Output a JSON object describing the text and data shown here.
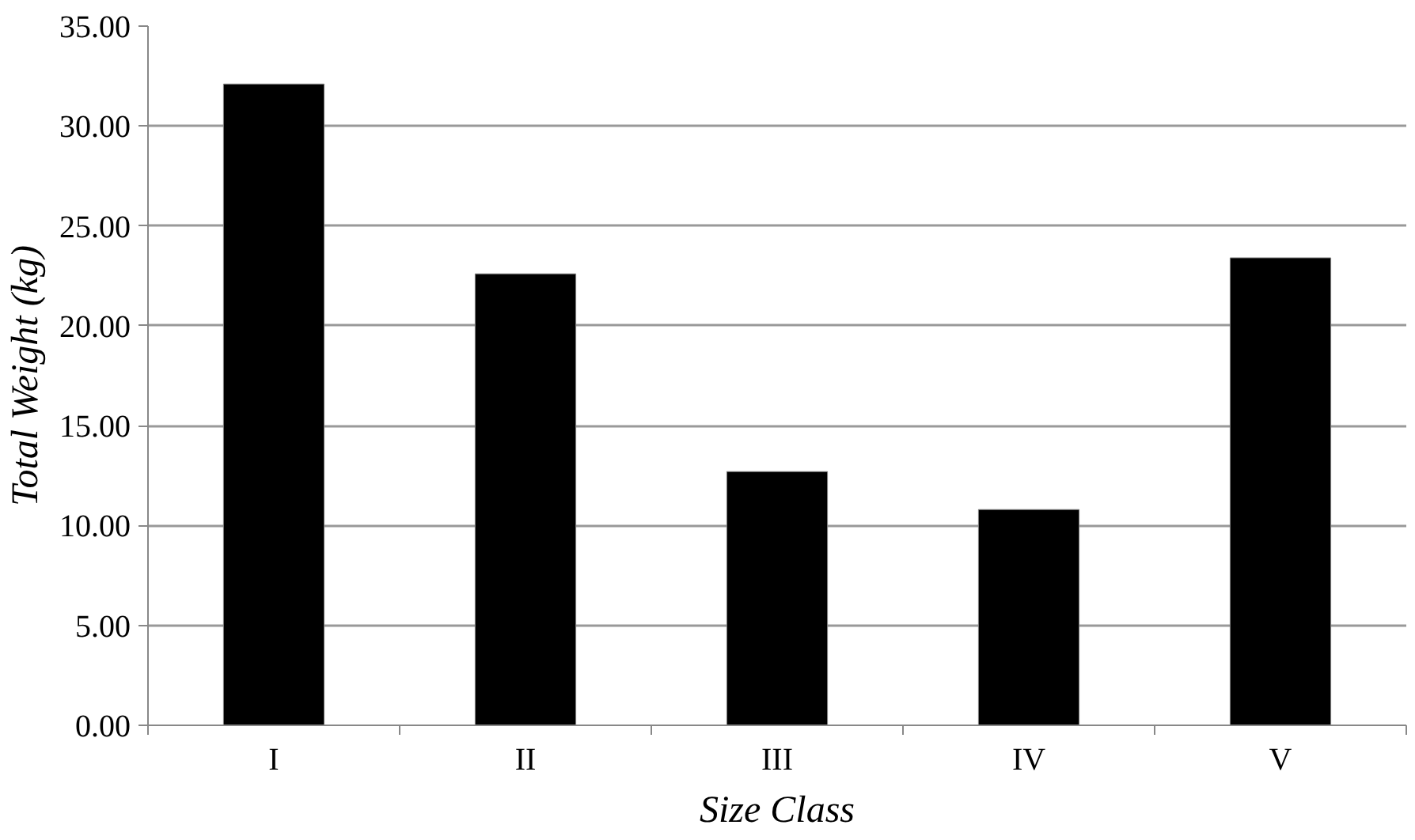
{
  "chart_data": {
    "type": "bar",
    "xlabel": "Size Class",
    "ylabel": "Total Weight (kg)",
    "categories": [
      "I",
      "II",
      "III",
      "IV",
      "V"
    ],
    "values": [
      32.1,
      22.6,
      12.7,
      10.8,
      23.4
    ],
    "color": "#000000",
    "ylim": [
      0,
      35
    ],
    "yticks": [
      {
        "value": 0,
        "label": "0.00"
      },
      {
        "value": 5,
        "label": "5.00"
      },
      {
        "value": 10,
        "label": "10.00"
      },
      {
        "value": 15,
        "label": "15.00"
      },
      {
        "value": 20,
        "label": "20.00"
      },
      {
        "value": 25,
        "label": "25.00"
      },
      {
        "value": 30,
        "label": "30.00"
      },
      {
        "value": 35,
        "label": "35.00"
      }
    ],
    "grid": "y"
  }
}
